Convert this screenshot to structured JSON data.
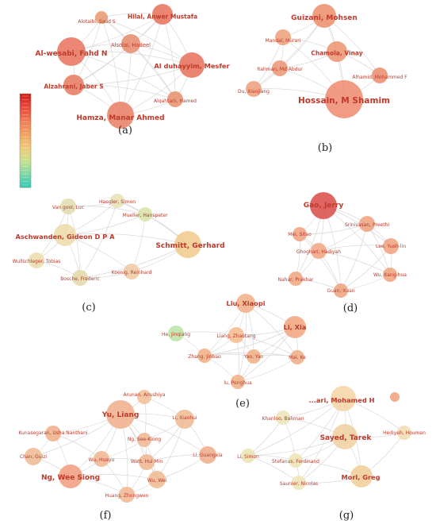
{
  "panels": [
    {
      "caption": "(a)",
      "nodes": [
        {
          "label": "Alotaibi, Saud S",
          "color": "#e8966f"
        },
        {
          "label": "Hilal, Anwer Mustafa",
          "color": "#e8715a"
        },
        {
          "label": "Al-wesabi, Fahd N",
          "color": "#e8725c"
        },
        {
          "label": "Alsolai, Hadeel",
          "color": "#e88a68"
        },
        {
          "label": "Al duhayyim, Mesfer",
          "color": "#e86f58"
        },
        {
          "label": "Alzahrani, Jaber S",
          "color": "#e8785e"
        },
        {
          "label": "Alqahtani, Hamed",
          "color": "#e88f6c"
        },
        {
          "label": "Hamza, Manar Ahmed",
          "color": "#ea7c62"
        }
      ]
    },
    {
      "caption": "(b)",
      "nodes": [
        {
          "label": "Guizani, Mohsen",
          "color": "#ec8e6a"
        },
        {
          "label": "Mandal, Murari",
          "color": "#ef9d78"
        },
        {
          "label": "Chamola, Vinay",
          "color": "#ed9270"
        },
        {
          "label": "Rahman, Md Abdur",
          "color": "#ec9472"
        },
        {
          "label": "Alhamid, Mohammed F",
          "color": "#ec8c6c"
        },
        {
          "label": "Du, Xiaojiang",
          "color": "#ef9e7c"
        },
        {
          "label": "Hossain, M Shamim",
          "color": "#ee8a6e"
        }
      ]
    },
    {
      "caption": "(c)",
      "nodes": [
        {
          "label": "Haegler, Simon",
          "color": "#e4e0b4"
        },
        {
          "label": "Van gool, Luc",
          "color": "#e0dcae"
        },
        {
          "label": "Mueller, Hanspeter",
          "color": "#d8e2a6"
        },
        {
          "label": "Aschwanden, Gideon D P A",
          "color": "#ecdca8"
        },
        {
          "label": "Schmitt, Gerhard",
          "color": "#f1c98c"
        },
        {
          "label": "Wullschleger, Tobias",
          "color": "#ecdcaa"
        },
        {
          "label": "Koenig, Reinhard",
          "color": "#efc9a0"
        },
        {
          "label": "Bosche, Frederic",
          "color": "#e4d8a8"
        }
      ]
    },
    {
      "caption": "(d)",
      "nodes": [
        {
          "label": "Gao, Jerry",
          "color": "#d84a44"
        },
        {
          "label": "Srinivasan, Preethi",
          "color": "#f0a07e"
        },
        {
          "label": "Mei, Sitao",
          "color": "#f0a07e"
        },
        {
          "label": "Ghoghari, Hadiyah",
          "color": "#f0a480"
        },
        {
          "label": "Lee, Yueh-lin",
          "color": "#f0a07e"
        },
        {
          "label": "Wu, Kang-hua",
          "color": "#f0a27e"
        },
        {
          "label": "Nahar, Prakhar",
          "color": "#f0a680"
        },
        {
          "label": "Guan, Xuan",
          "color": "#f0a27e"
        }
      ]
    },
    {
      "caption": "(e)",
      "nodes": [
        {
          "label": "Liu, Xiaopi",
          "color": "#f0ae84"
        },
        {
          "label": "Li, Xia",
          "color": "#f0a57c"
        },
        {
          "label": "He, Jinqiang",
          "color": "#b9e4a4"
        },
        {
          "label": "Liang, Zhaotang",
          "color": "#f4ba8e"
        },
        {
          "label": "Zhang, Jinbao",
          "color": "#f0ae82"
        },
        {
          "label": "Yao, Yao",
          "color": "#f0ae82"
        },
        {
          "label": "Mai, Ke",
          "color": "#f0ac82"
        },
        {
          "label": "lu, Penghua",
          "color": "#f0ae82"
        }
      ]
    },
    {
      "caption": "(f)",
      "nodes": [
        {
          "label": "Arunan, Anushiya",
          "color": "#f0be96"
        },
        {
          "label": "Yu, Liang",
          "color": "#f0ae88"
        },
        {
          "label": "Li, Xiaohui",
          "color": "#f0b890"
        },
        {
          "label": "Kunasegaran, Usha Nanthani",
          "color": "#f0ae88"
        },
        {
          "label": "Ng, See-Kiong",
          "color": "#f0b690"
        },
        {
          "label": "Chan, Guizi",
          "color": "#f0b890"
        },
        {
          "label": "Wu, Huayu",
          "color": "#f0b48e"
        },
        {
          "label": "Watt, Hui Min",
          "color": "#f0b48e"
        },
        {
          "label": "Li, Guangxia",
          "color": "#f0aa88"
        },
        {
          "label": "Ng, Wee Siong",
          "color": "#f09c7c"
        },
        {
          "label": "Wu, Wei",
          "color": "#f0b890"
        },
        {
          "label": "Huang, Zhongwen",
          "color": "#f0b690"
        }
      ]
    },
    {
      "caption": "(g)",
      "nodes": [
        {
          "label": "...ari, Mohamed H",
          "color": "#f4d4a4"
        },
        {
          "label": "",
          "color": "#f0a078"
        },
        {
          "label": "Khanloo, Bahman",
          "color": "#ece4b6"
        },
        {
          "label": "Hediyeh, Houman",
          "color": "#f0dcae"
        },
        {
          "label": "Sayed, Tarek",
          "color": "#f0d0a0"
        },
        {
          "label": "Li, Simon",
          "color": "#e8e4b0"
        },
        {
          "label": "Stefanus, Ferdinand",
          "color": "#ece4b6"
        },
        {
          "label": "Morl, Greg",
          "color": "#f0cc98"
        },
        {
          "label": "Saunier, Nicolas",
          "color": "#ece4b6"
        }
      ]
    }
  ],
  "colorbar": {
    "stops": [
      "#d01c1c",
      "#e8483a",
      "#f07a50",
      "#f0a060",
      "#f0c878",
      "#c8e08c",
      "#7cd8a8",
      "#30c8b4"
    ]
  }
}
